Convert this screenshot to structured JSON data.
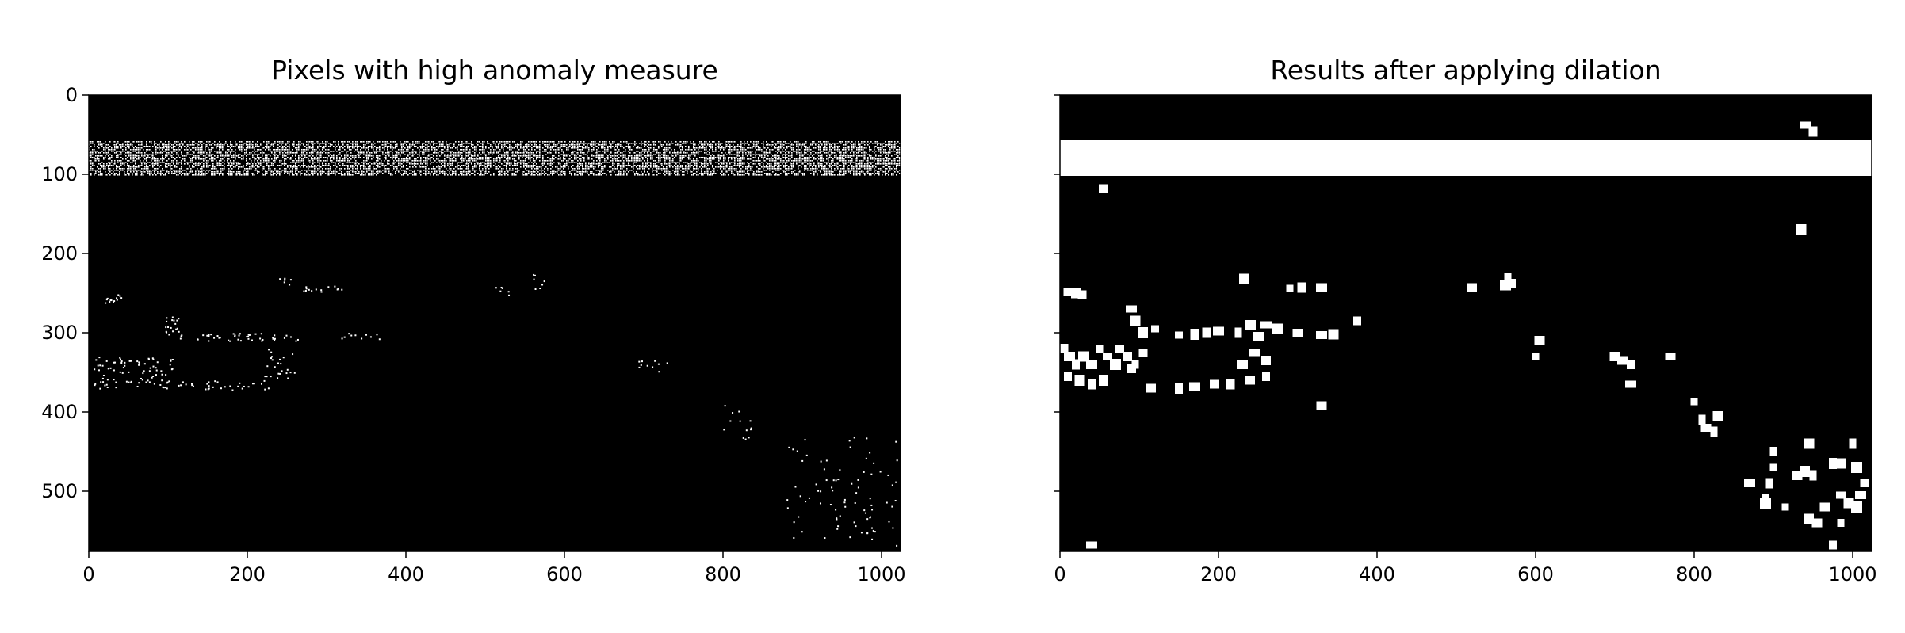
{
  "chart_data": [
    {
      "type": "heatmap",
      "title": "Pixels with high anomaly measure",
      "xlabel": "",
      "ylabel": "",
      "xlim": [
        0,
        1024
      ],
      "ylim": [
        576,
        0
      ],
      "xticks": [
        0,
        200,
        400,
        600,
        800,
        1000
      ],
      "yticks": [
        0,
        100,
        200,
        300,
        400,
        500
      ],
      "xtick_labels": [
        "0",
        "200",
        "400",
        "600",
        "800",
        "1000"
      ],
      "ytick_labels": [
        "0",
        "100",
        "200",
        "300",
        "400",
        "500"
      ],
      "colormap": [
        "#000000",
        "#ffffff"
      ],
      "band": {
        "y0": 58,
        "y1": 100,
        "density": 0.55
      },
      "clusters": [
        {
          "x": 15,
          "y": 250,
          "w": 30,
          "h": 12,
          "n": 14
        },
        {
          "x": 5,
          "y": 330,
          "w": 100,
          "h": 40,
          "n": 90
        },
        {
          "x": 95,
          "y": 275,
          "w": 20,
          "h": 30,
          "n": 18
        },
        {
          "x": 110,
          "y": 300,
          "w": 160,
          "h": 10,
          "n": 45
        },
        {
          "x": 220,
          "y": 320,
          "w": 40,
          "h": 40,
          "n": 25
        },
        {
          "x": 110,
          "y": 360,
          "w": 120,
          "h": 12,
          "n": 30
        },
        {
          "x": 235,
          "y": 230,
          "w": 20,
          "h": 10,
          "n": 6
        },
        {
          "x": 270,
          "y": 240,
          "w": 60,
          "h": 8,
          "n": 14
        },
        {
          "x": 300,
          "y": 300,
          "w": 70,
          "h": 8,
          "n": 10
        },
        {
          "x": 510,
          "y": 240,
          "w": 20,
          "h": 12,
          "n": 6
        },
        {
          "x": 555,
          "y": 225,
          "w": 20,
          "h": 20,
          "n": 7
        },
        {
          "x": 690,
          "y": 325,
          "w": 40,
          "h": 25,
          "n": 10
        },
        {
          "x": 800,
          "y": 390,
          "w": 40,
          "h": 45,
          "n": 14
        },
        {
          "x": 880,
          "y": 430,
          "w": 140,
          "h": 140,
          "n": 85
        }
      ]
    },
    {
      "type": "heatmap",
      "title": "Results after applying dilation",
      "xlabel": "",
      "ylabel": "",
      "xlim": [
        0,
        1024
      ],
      "ylim": [
        576,
        0
      ],
      "xticks": [
        0,
        200,
        400,
        600,
        800,
        1000
      ],
      "yticks": [
        0,
        100,
        200,
        300,
        400,
        500
      ],
      "xtick_labels": [
        "0",
        "200",
        "400",
        "600",
        "800",
        "1000"
      ],
      "colormap": [
        "#000000",
        "#ffffff"
      ],
      "band": {
        "y0": 57,
        "y1": 102
      },
      "blobs": [
        [
          940,
          38
        ],
        [
          950,
          46
        ],
        [
          55,
          118
        ],
        [
          935,
          170
        ],
        [
          10,
          248
        ],
        [
          20,
          250
        ],
        [
          28,
          252
        ],
        [
          232,
          232
        ],
        [
          305,
          243
        ],
        [
          330,
          243
        ],
        [
          290,
          244
        ],
        [
          520,
          243
        ],
        [
          565,
          230
        ],
        [
          570,
          238
        ],
        [
          562,
          240
        ],
        [
          90,
          270
        ],
        [
          95,
          285
        ],
        [
          105,
          300
        ],
        [
          120,
          295
        ],
        [
          150,
          303
        ],
        [
          170,
          302
        ],
        [
          185,
          300
        ],
        [
          200,
          298
        ],
        [
          225,
          300
        ],
        [
          250,
          305
        ],
        [
          240,
          290
        ],
        [
          260,
          290
        ],
        [
          275,
          295
        ],
        [
          300,
          300
        ],
        [
          330,
          303
        ],
        [
          345,
          302
        ],
        [
          375,
          285
        ],
        [
          5,
          320
        ],
        [
          12,
          330
        ],
        [
          20,
          340
        ],
        [
          30,
          330
        ],
        [
          40,
          340
        ],
        [
          50,
          320
        ],
        [
          60,
          330
        ],
        [
          75,
          320
        ],
        [
          85,
          330
        ],
        [
          95,
          340
        ],
        [
          105,
          325
        ],
        [
          10,
          355
        ],
        [
          25,
          360
        ],
        [
          40,
          365
        ],
        [
          55,
          360
        ],
        [
          70,
          340
        ],
        [
          90,
          345
        ],
        [
          115,
          370
        ],
        [
          150,
          370
        ],
        [
          170,
          368
        ],
        [
          195,
          365
        ],
        [
          215,
          365
        ],
        [
          240,
          360
        ],
        [
          260,
          355
        ],
        [
          230,
          340
        ],
        [
          245,
          325
        ],
        [
          260,
          335
        ],
        [
          330,
          392
        ],
        [
          605,
          310
        ],
        [
          600,
          330
        ],
        [
          700,
          330
        ],
        [
          710,
          335
        ],
        [
          720,
          340
        ],
        [
          720,
          365
        ],
        [
          770,
          330
        ],
        [
          800,
          387
        ],
        [
          810,
          410
        ],
        [
          815,
          420
        ],
        [
          825,
          425
        ],
        [
          830,
          405
        ],
        [
          870,
          490
        ],
        [
          890,
          510
        ],
        [
          895,
          490
        ],
        [
          900,
          470
        ],
        [
          900,
          450
        ],
        [
          930,
          480
        ],
        [
          940,
          475
        ],
        [
          950,
          480
        ],
        [
          945,
          440
        ],
        [
          975,
          465
        ],
        [
          985,
          465
        ],
        [
          1000,
          440
        ],
        [
          1005,
          470
        ],
        [
          915,
          520
        ],
        [
          945,
          535
        ],
        [
          955,
          540
        ],
        [
          965,
          520
        ],
        [
          985,
          505
        ],
        [
          995,
          515
        ],
        [
          1005,
          520
        ],
        [
          1010,
          505
        ],
        [
          1015,
          490
        ],
        [
          40,
          568
        ],
        [
          975,
          568
        ],
        [
          890,
          515
        ],
        [
          985,
          540
        ]
      ]
    }
  ]
}
